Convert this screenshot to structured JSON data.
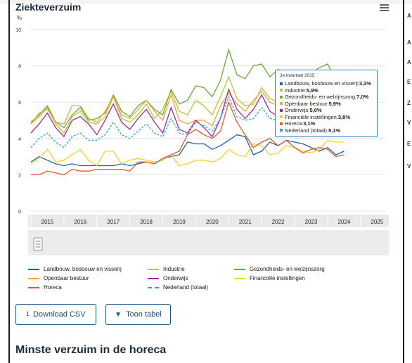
{
  "title": "Ziekteverzuim",
  "menu_icon": "hamburger-menu-icon",
  "chart_data": {
    "type": "line",
    "ylabel": "%",
    "ylim": [
      0,
      10
    ],
    "yticks": [
      "0",
      "2",
      "4",
      "6",
      "8",
      "10"
    ],
    "xticks": [
      "2015",
      "2016",
      "2017",
      "2018",
      "2019",
      "2020",
      "2021",
      "2022",
      "2023",
      "2024",
      "2025"
    ],
    "x_start_year": 2015,
    "x_end_year": 2025.75,
    "grid": true,
    "navigator_icon": "scroll-handle-icon",
    "series": [
      {
        "name": "Landbouw, bosbouw en visserij",
        "color": "#1f5fa8",
        "dash": false,
        "values": [
          2.7,
          3.0,
          2.8,
          2.6,
          2.5,
          2.6,
          2.5,
          2.5,
          2.5,
          2.5,
          2.5,
          2.6,
          2.5,
          2.6,
          2.7,
          2.6,
          2.9,
          3.0,
          3.1,
          3.8,
          3.7,
          3.7,
          3.4,
          3.6,
          3.9,
          4.2,
          4.1,
          3.1,
          3.3,
          3.8,
          3.6,
          3.9,
          3.8,
          3.7,
          3.5,
          3.3,
          3.5,
          3.1,
          3.3
        ]
      },
      {
        "name": "Industrie",
        "color": "#b5c92b",
        "dash": false,
        "values": [
          4.8,
          5.2,
          5.7,
          4.8,
          4.3,
          5.2,
          5.5,
          4.9,
          4.8,
          5.2,
          6.3,
          5.1,
          4.9,
          5.3,
          5.9,
          5.1,
          5.6,
          6.6,
          5.5,
          5.3,
          6.1,
          5.8,
          5.3,
          6.3,
          7.4,
          6.2,
          5.8,
          5.9,
          6.8,
          6.2,
          6.0,
          6.3,
          6.4,
          6.3,
          5.9,
          6.0,
          6.5,
          6.0,
          5.9
        ]
      },
      {
        "name": "Gezondheids- en welzijnszorg",
        "color": "#6aa83b",
        "dash": false,
        "values": [
          4.9,
          5.3,
          5.8,
          4.9,
          4.6,
          5.3,
          5.7,
          5.0,
          5.1,
          5.4,
          6.4,
          5.5,
          5.2,
          5.8,
          6.1,
          5.6,
          5.3,
          6.7,
          5.9,
          6.1,
          6.9,
          6.8,
          6.3,
          7.2,
          8.9,
          7.5,
          7.3,
          8.0,
          8.1,
          7.4,
          7.8,
          7.6,
          7.7,
          7.3,
          7.6,
          7.9,
          8.1,
          7.2,
          7.0
        ]
      },
      {
        "name": "Openbaar bestuur",
        "color": "#f2a33a",
        "dash": false,
        "values": [
          4.8,
          5.4,
          5.6,
          4.9,
          4.8,
          5.8,
          5.8,
          5.1,
          4.9,
          5.5,
          6.3,
          5.3,
          5.1,
          5.6,
          6.1,
          5.5,
          5.0,
          6.4,
          5.0,
          4.8,
          5.0,
          5.0,
          4.7,
          5.8,
          6.5,
          5.9,
          5.5,
          6.1,
          6.6,
          6.0,
          5.8,
          6.3,
          6.2,
          6.0,
          5.7,
          6.0,
          6.2,
          6.1,
          5.9
        ]
      },
      {
        "name": "Onderwijs",
        "color": "#9b2aa0",
        "dash": false,
        "values": [
          4.3,
          4.8,
          5.4,
          4.6,
          4.1,
          5.0,
          5.2,
          4.8,
          4.2,
          5.0,
          5.9,
          4.9,
          4.5,
          5.1,
          5.6,
          4.9,
          4.3,
          5.7,
          4.5,
          4.3,
          5.0,
          4.6,
          4.1,
          5.1,
          6.7,
          5.6,
          5.1,
          5.6,
          6.4,
          5.5,
          5.2,
          5.7,
          6.1,
          5.7,
          5.0,
          5.2,
          6.1,
          5.3,
          5.0
        ]
      },
      {
        "name": "Financiële instellingen",
        "color": "#f2d230",
        "dash": false,
        "values": [
          2.6,
          2.9,
          3.4,
          2.7,
          2.8,
          3.1,
          3.4,
          2.8,
          2.5,
          3.3,
          3.3,
          2.6,
          2.8,
          2.9,
          2.8,
          2.7,
          2.8,
          3.1,
          2.5,
          2.6,
          2.8,
          2.8,
          2.7,
          2.9,
          3.4,
          3.1,
          3.0,
          3.7,
          3.6,
          3.1,
          3.2,
          3.6,
          3.5,
          3.3,
          3.2,
          3.4,
          3.9,
          3.8,
          3.8
        ]
      },
      {
        "name": "Horeca",
        "color": "#e8572c",
        "dash": false,
        "values": [
          2.0,
          2.0,
          2.2,
          2.1,
          2.0,
          2.3,
          2.2,
          2.2,
          2.3,
          2.3,
          2.3,
          2.3,
          2.2,
          2.7,
          2.7,
          2.6,
          2.9,
          3.1,
          3.3,
          4.2,
          4.5,
          4.2,
          4.0,
          4.4,
          6.0,
          4.9,
          4.2,
          3.5,
          3.8,
          4.0,
          3.6,
          3.9,
          3.5,
          3.2,
          3.4,
          3.5,
          3.4,
          3.0,
          3.1
        ]
      },
      {
        "name": "Nederland (totaal)",
        "color": "#2ea3d6",
        "dash": true,
        "values": [
          3.5,
          4.0,
          4.3,
          3.8,
          3.5,
          4.1,
          4.3,
          3.9,
          3.9,
          4.2,
          4.9,
          4.2,
          4.0,
          4.4,
          4.8,
          4.3,
          4.1,
          5.1,
          4.3,
          4.2,
          4.9,
          4.7,
          4.4,
          5.1,
          6.3,
          5.2,
          5.0,
          5.1,
          5.7,
          5.1,
          5.0,
          5.3,
          5.4,
          5.1,
          4.9,
          5.1,
          5.5,
          5.1,
          5.1
        ]
      }
    ]
  },
  "tooltip": {
    "header": "3e kwartaal 2025",
    "rows": [
      {
        "label": "Landbouw, bosbouw en visserij: ",
        "value": "3,3%",
        "color": "#1f5fa8"
      },
      {
        "label": "Industrie: ",
        "value": "5,9%",
        "color": "#b5c92b"
      },
      {
        "label": "Gezondheids- en welzijnszorg: ",
        "value": "7,0%",
        "color": "#6aa83b"
      },
      {
        "label": "Openbaar bestuur: ",
        "value": "5,9%",
        "color": "#f2a33a"
      },
      {
        "label": "Onderwijs: ",
        "value": "5,0%",
        "color": "#9b2aa0"
      },
      {
        "label": "Financiële instellingen: ",
        "value": "3,8%",
        "color": "#f2d230"
      },
      {
        "label": "Horeca: ",
        "value": "3,1%",
        "color": "#e8572c"
      },
      {
        "label": "Nederland (totaal): ",
        "value": "5,1%",
        "color": "#2ea3d6"
      }
    ]
  },
  "buttons": {
    "download_csv": "Download CSV",
    "download_icon": "download-icon",
    "show_table": "Toon tabel",
    "show_table_icon": "caret-down-icon"
  },
  "section_heading": "Minste verzuim in de horeca",
  "right_edge_letters": [
    "A",
    "A",
    "A",
    "E",
    "Z",
    "V",
    "E",
    "V"
  ]
}
